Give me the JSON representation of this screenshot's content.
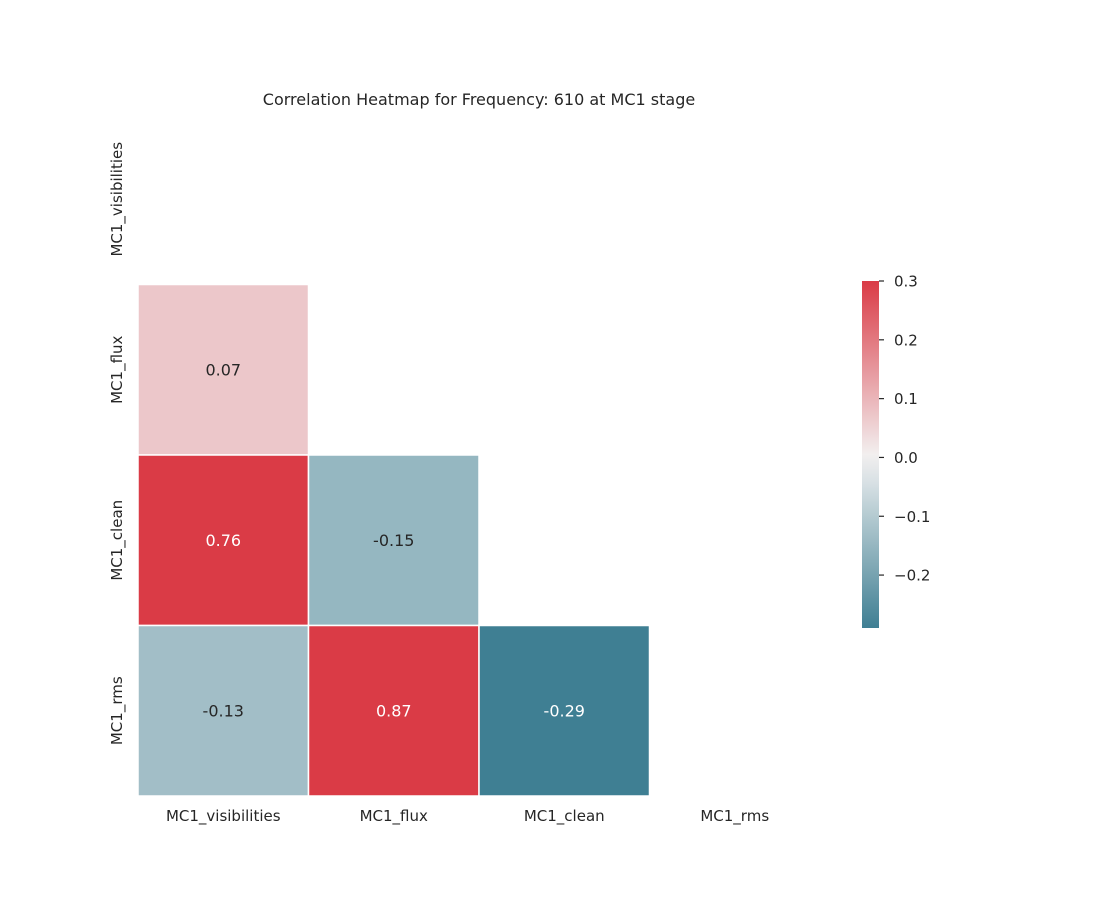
{
  "chart_data": {
    "type": "heatmap",
    "title": "Correlation Heatmap for Frequency: 610 at MC1 stage",
    "variables": [
      "MC1_visibilities",
      "MC1_flux",
      "MC1_clean",
      "MC1_rms"
    ],
    "mask": "upper-triangle-and-diagonal",
    "cells": [
      {
        "row": "MC1_flux",
        "col": "MC1_visibilities",
        "value": 0.07,
        "label": "0.07"
      },
      {
        "row": "MC1_clean",
        "col": "MC1_visibilities",
        "value": 0.76,
        "label": "0.76"
      },
      {
        "row": "MC1_clean",
        "col": "MC1_flux",
        "value": -0.15,
        "label": "-0.15"
      },
      {
        "row": "MC1_rms",
        "col": "MC1_visibilities",
        "value": -0.13,
        "label": "-0.13"
      },
      {
        "row": "MC1_rms",
        "col": "MC1_flux",
        "value": 0.87,
        "label": "0.87"
      },
      {
        "row": "MC1_rms",
        "col": "MC1_clean",
        "value": -0.29,
        "label": "-0.29"
      }
    ],
    "colorbar": {
      "range": [
        -0.29,
        0.3
      ],
      "ticks": [
        0.3,
        0.2,
        0.1,
        0.0,
        -0.1,
        -0.2
      ],
      "tick_labels": [
        "0.3",
        "0.2",
        "0.1",
        "0.0",
        "−0.1",
        "−0.2"
      ],
      "colors": {
        "low": "#3f7f93",
        "mid": "#f2f2f2",
        "high": "#da3b46"
      }
    },
    "legend_placement": "right",
    "grid": false
  }
}
